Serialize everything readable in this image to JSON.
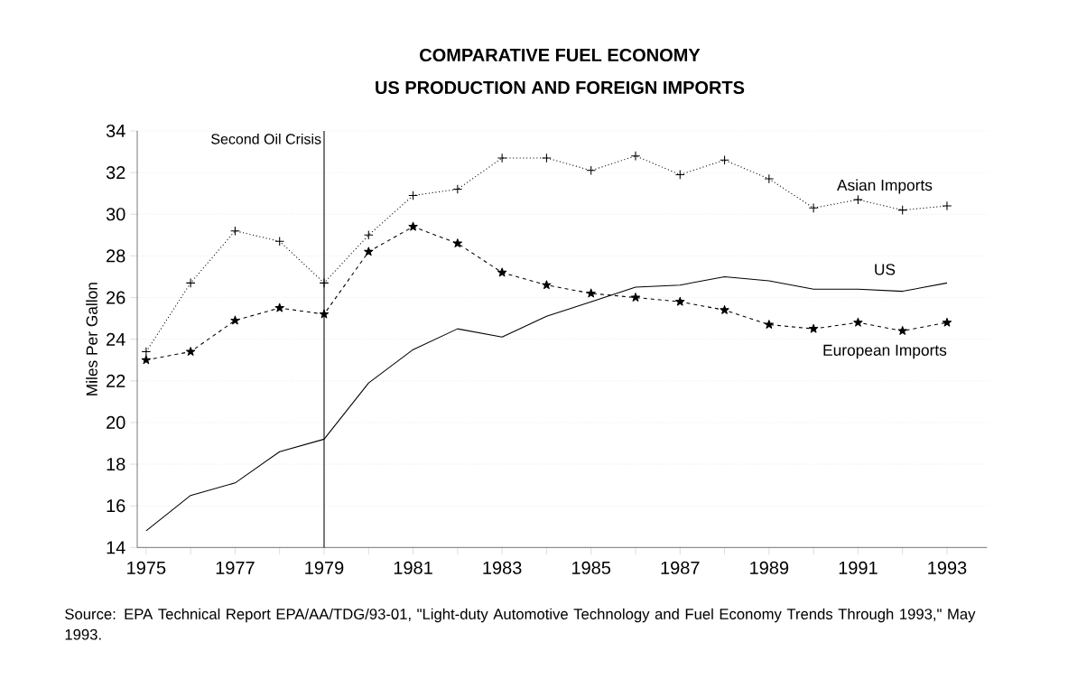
{
  "chart_data": {
    "type": "line",
    "title": "COMPARATIVE FUEL ECONOMY",
    "subtitle": "US PRODUCTION AND FOREIGN IMPORTS",
    "ylabel": "Miles Per Gallon",
    "x": [
      1975,
      1976,
      1977,
      1978,
      1979,
      1980,
      1981,
      1982,
      1983,
      1984,
      1985,
      1986,
      1987,
      1988,
      1989,
      1990,
      1991,
      1992,
      1993
    ],
    "series": [
      {
        "name": "Asian Imports",
        "color": "#000000",
        "marker": "cross",
        "line_style": "dotted",
        "values": [
          23.4,
          26.7,
          29.2,
          28.7,
          26.7,
          29.0,
          30.9,
          31.2,
          32.7,
          32.7,
          32.1,
          32.8,
          31.9,
          32.6,
          31.7,
          30.3,
          30.7,
          30.2,
          30.4
        ]
      },
      {
        "name": "US",
        "color": "#000000",
        "marker": "none",
        "line_style": "solid",
        "values": [
          14.8,
          16.5,
          17.1,
          18.6,
          19.2,
          21.9,
          23.5,
          24.5,
          24.1,
          25.1,
          25.8,
          26.5,
          26.6,
          27.0,
          26.8,
          26.4,
          26.4,
          26.3,
          26.7
        ]
      },
      {
        "name": "European Imports",
        "color": "#000000",
        "marker": "star",
        "line_style": "dashed",
        "values": [
          23.0,
          23.4,
          24.9,
          25.5,
          25.2,
          28.2,
          29.4,
          28.6,
          27.2,
          26.6,
          26.2,
          26.0,
          25.8,
          25.4,
          24.7,
          24.5,
          24.8,
          24.4,
          24.8
        ]
      }
    ],
    "xlim": [
      1974.8,
      1993.9
    ],
    "xticks": [
      1975,
      {
        "value": 1976,
        "label": null
      },
      1977,
      {
        "value": 1978,
        "label": null
      },
      1979,
      {
        "value": 1980,
        "label": null
      },
      1981,
      {
        "value": 1982,
        "label": null
      },
      1983,
      {
        "value": 1984,
        "label": null
      },
      1985,
      {
        "value": 1986,
        "label": null
      },
      1987,
      {
        "value": 1988,
        "label": null
      },
      1989,
      {
        "value": 1990,
        "label": null
      },
      1991,
      {
        "value": 1992,
        "label": null
      },
      1993
    ],
    "ylim": [
      14,
      34
    ],
    "yticks": [
      14,
      16,
      18,
      20,
      22,
      24,
      26,
      28,
      30,
      32,
      34
    ],
    "grid": "y",
    "ref_lines": [
      {
        "axis": "x",
        "value": 1979,
        "label": "Second Oil Crisis",
        "color": "#000000",
        "line_style": "solid"
      }
    ],
    "annotations": [
      "Source:  EPA Technical Report EPA/AA/TDG/93-01, \"Light-duty Automotive Technology and Fuel Economy Trends Through 1993,\" May 1993."
    ]
  }
}
